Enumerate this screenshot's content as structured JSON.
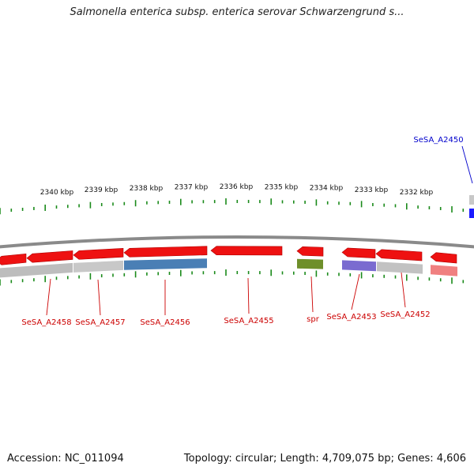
{
  "title": "Salmonella enterica subsp. enterica serovar Schwarzengrund s...",
  "footer": {
    "accession": "Accession: NC_011094",
    "summary": "Topology: circular; Length: 4,709,075 bp; Genes: 4,606"
  },
  "colors": {
    "tick": "#1a8a1a",
    "backbone": "#8a8a8a",
    "gene": "#ee1111",
    "label_red": "#cc0000",
    "label_blue": "#0000cc"
  },
  "scale": {
    "unit": "kbp",
    "labels": [
      "2340 kbp",
      "2339 kbp",
      "2338 kbp",
      "2337 kbp",
      "2336 kbp",
      "2335 kbp",
      "2334 kbp",
      "2333 kbp",
      "2332 kbp"
    ]
  },
  "genes": [
    {
      "label": "SeSA_A2458",
      "label_color": "red"
    },
    {
      "label": "SeSA_A2457",
      "label_color": "red"
    },
    {
      "label": "SeSA_A2456",
      "label_color": "red"
    },
    {
      "label": "SeSA_A2455",
      "label_color": "red"
    },
    {
      "label": "spr",
      "label_color": "red"
    },
    {
      "label": "SeSA_A2453",
      "label_color": "red"
    },
    {
      "label": "SeSA_A2452",
      "label_color": "red"
    },
    {
      "label": "SeSA_A2450",
      "label_color": "blue"
    }
  ]
}
